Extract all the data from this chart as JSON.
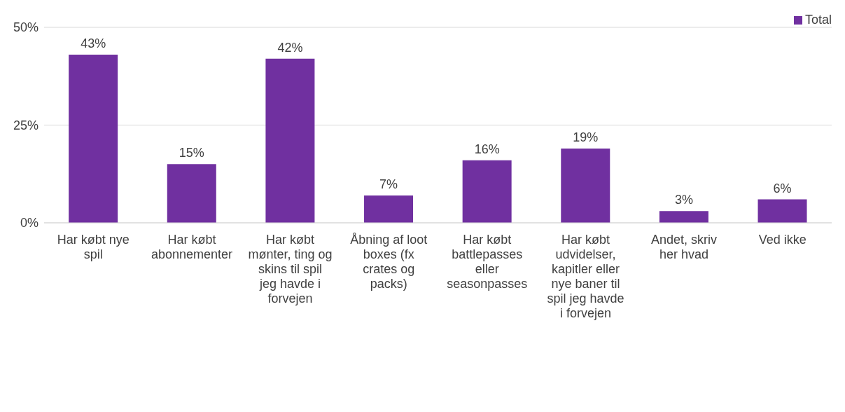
{
  "chart_data": {
    "type": "bar",
    "categories": [
      "Har købt nye spil",
      "Har købt abonnementer",
      "Har købt mønter, ting og skins til spil jeg havde i forvejen",
      "Åbning af loot boxes (fx crates og packs)",
      "Har købt battlepasses eller seasonpasses",
      "Har købt udvidelser, kapitler eller nye baner til spil jeg havde i forvejen",
      "Andet, skriv her hvad",
      "Ved ikke"
    ],
    "series": [
      {
        "name": "Total",
        "color": "#7030a0",
        "values": [
          43,
          15,
          42,
          7,
          16,
          19,
          3,
          6
        ],
        "value_labels": [
          "43%",
          "15%",
          "42%",
          "7%",
          "16%",
          "19%",
          "3%",
          "6%"
        ]
      }
    ],
    "ylim": [
      0,
      50
    ],
    "yticks": [
      {
        "value": 0,
        "label": "0%"
      },
      {
        "value": 25,
        "label": "25%"
      },
      {
        "value": 50,
        "label": "50%"
      }
    ],
    "grid": "y",
    "legend": "top right"
  }
}
